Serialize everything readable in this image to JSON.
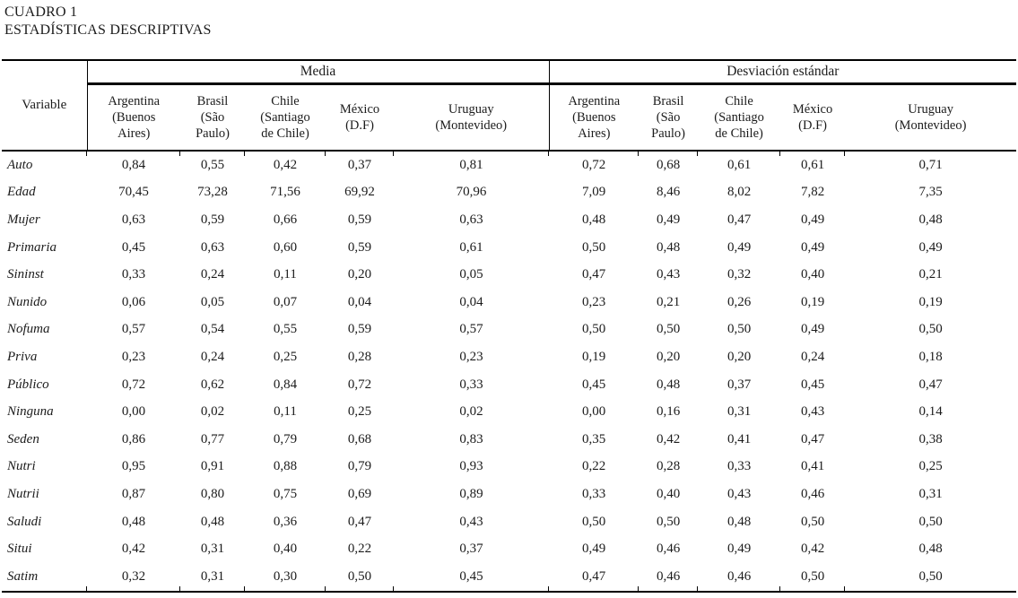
{
  "title": {
    "line1": "CUADRO 1",
    "line2": "ESTADÍSTICAS DESCRIPTIVAS"
  },
  "table": {
    "variable_header": "Variable",
    "groups": [
      {
        "label": "Media"
      },
      {
        "label": "Desviación estándar"
      }
    ],
    "col_labels": [
      {
        "country": "Argentina",
        "lines": [
          "Argentina",
          "(Buenos",
          "Aires)"
        ]
      },
      {
        "country": "Brasil",
        "lines": [
          "Brasil",
          "(São",
          "Paulo)"
        ]
      },
      {
        "country": "Chile",
        "lines": [
          "Chile",
          "(Santiago",
          "de Chile)"
        ]
      },
      {
        "country": "México",
        "lines": [
          "México",
          "(D.F)"
        ]
      },
      {
        "country": "Uruguay",
        "lines": [
          "Uruguay",
          "(Montevideo)"
        ]
      }
    ],
    "rows": [
      {
        "variable": "Auto",
        "media": [
          "0,84",
          "0,55",
          "0,42",
          "0,37",
          "0,81"
        ],
        "sd": [
          "0,72",
          "0,68",
          "0,61",
          "0,61",
          "0,71"
        ]
      },
      {
        "variable": "Edad",
        "media": [
          "70,45",
          "73,28",
          "71,56",
          "69,92",
          "70,96"
        ],
        "sd": [
          "7,09",
          "8,46",
          "8,02",
          "7,82",
          "7,35"
        ]
      },
      {
        "variable": "Mujer",
        "media": [
          "0,63",
          "0,59",
          "0,66",
          "0,59",
          "0,63"
        ],
        "sd": [
          "0,48",
          "0,49",
          "0,47",
          "0,49",
          "0,48"
        ]
      },
      {
        "variable": "Primaria",
        "media": [
          "0,45",
          "0,63",
          "0,60",
          "0,59",
          "0,61"
        ],
        "sd": [
          "0,50",
          "0,48",
          "0,49",
          "0,49",
          "0,49"
        ]
      },
      {
        "variable": "Sininst",
        "media": [
          "0,33",
          "0,24",
          "0,11",
          "0,20",
          "0,05"
        ],
        "sd": [
          "0,47",
          "0,43",
          "0,32",
          "0,40",
          "0,21"
        ]
      },
      {
        "variable": "Nunido",
        "media": [
          "0,06",
          "0,05",
          "0,07",
          "0,04",
          "0,04"
        ],
        "sd": [
          "0,23",
          "0,21",
          "0,26",
          "0,19",
          "0,19"
        ]
      },
      {
        "variable": "Nofuma",
        "media": [
          "0,57",
          "0,54",
          "0,55",
          "0,59",
          "0,57"
        ],
        "sd": [
          "0,50",
          "0,50",
          "0,50",
          "0,49",
          "0,50"
        ]
      },
      {
        "variable": "Priva",
        "media": [
          "0,23",
          "0,24",
          "0,25",
          "0,28",
          "0,23"
        ],
        "sd": [
          "0,19",
          "0,20",
          "0,20",
          "0,24",
          "0,18"
        ]
      },
      {
        "variable": "Público",
        "media": [
          "0,72",
          "0,62",
          "0,84",
          "0,72",
          "0,33"
        ],
        "sd": [
          "0,45",
          "0,48",
          "0,37",
          "0,45",
          "0,47"
        ]
      },
      {
        "variable": "Ninguna",
        "media": [
          "0,00",
          "0,02",
          "0,11",
          "0,25",
          "0,02"
        ],
        "sd": [
          "0,00",
          "0,16",
          "0,31",
          "0,43",
          "0,14"
        ]
      },
      {
        "variable": "Seden",
        "media": [
          "0,86",
          "0,77",
          "0,79",
          "0,68",
          "0,83"
        ],
        "sd": [
          "0,35",
          "0,42",
          "0,41",
          "0,47",
          "0,38"
        ]
      },
      {
        "variable": "Nutri",
        "media": [
          "0,95",
          "0,91",
          "0,88",
          "0,79",
          "0,93"
        ],
        "sd": [
          "0,22",
          "0,28",
          "0,33",
          "0,41",
          "0,25"
        ]
      },
      {
        "variable": "Nutrii",
        "media": [
          "0,87",
          "0,80",
          "0,75",
          "0,69",
          "0,89"
        ],
        "sd": [
          "0,33",
          "0,40",
          "0,43",
          "0,46",
          "0,31"
        ]
      },
      {
        "variable": "Saludi",
        "media": [
          "0,48",
          "0,48",
          "0,36",
          "0,47",
          "0,43"
        ],
        "sd": [
          "0,50",
          "0,50",
          "0,48",
          "0,50",
          "0,50"
        ]
      },
      {
        "variable": "Situi",
        "media": [
          "0,42",
          "0,31",
          "0,40",
          "0,22",
          "0,37"
        ],
        "sd": [
          "0,49",
          "0,46",
          "0,49",
          "0,42",
          "0,48"
        ]
      },
      {
        "variable": "Satim",
        "media": [
          "0,32",
          "0,31",
          "0,30",
          "0,50",
          "0,45"
        ],
        "sd": [
          "0,47",
          "0,46",
          "0,46",
          "0,50",
          "0,50"
        ]
      }
    ]
  }
}
